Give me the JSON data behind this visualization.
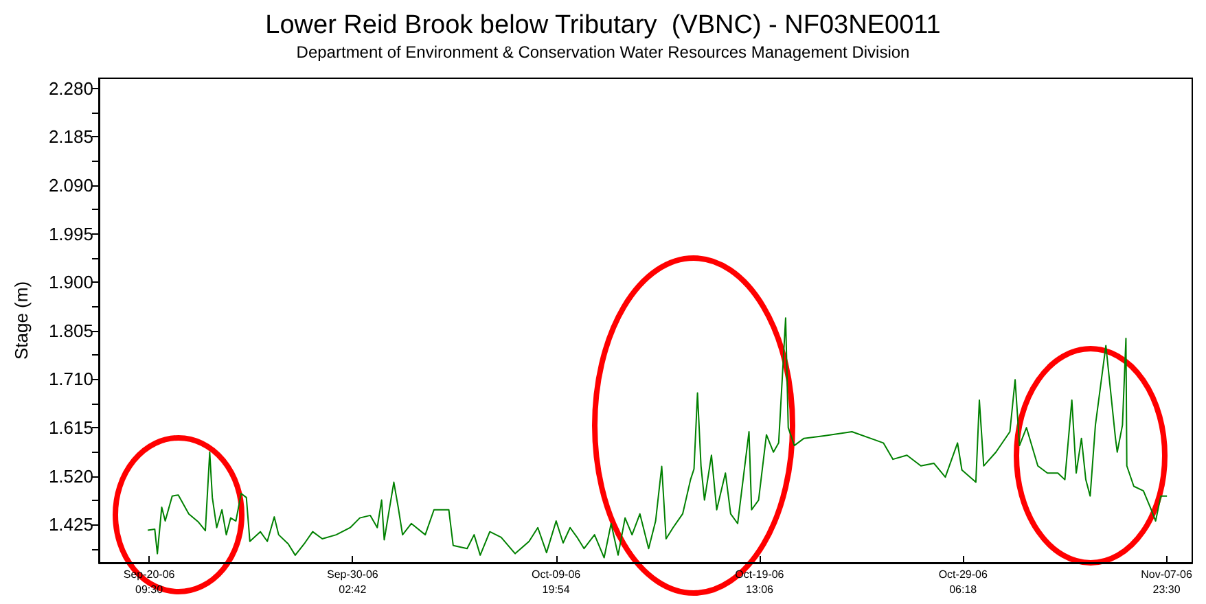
{
  "chart_data": {
    "type": "line",
    "title": "Lower Reid Brook below Tributary  (VBNC) - NF03NE0011",
    "subtitle": "Department of Environment & Conservation Water Resources Management Division",
    "ylabel": "Stage (m)",
    "x": [
      "--09-20T08:00",
      "--09-20T16:00",
      "--09-20T19:00",
      "--09-21T00:00",
      "--09-21T04:00",
      "--09-21T12:00",
      "--09-21T19:00",
      "--09-22T07:00",
      "--09-22T18:00",
      "--09-23T02:00",
      "--09-23T07:00",
      "--09-23T10:00",
      "--09-23T15:00",
      "--09-23T21:00",
      "--09-24T02:00",
      "--09-24T07:00",
      "--09-24T13:00",
      "--09-24T19:00",
      "--09-25T01:00",
      "--09-25T05:00",
      "--09-25T17:00",
      "--09-26T01:00",
      "--09-26T09:00",
      "--09-26T14:00",
      "--09-27T01:00",
      "--09-27T09:00",
      "--09-27T20:00",
      "--09-28T05:00",
      "--09-28T16:00",
      "--09-29T08:00",
      "--09-30T00:00",
      "--09-30T11:00",
      "--09-30T23:00",
      "--10-01T07:00",
      "--10-01T12:00",
      "--10-01T15:00",
      "--10-02T02:00",
      "--10-02T07:00",
      "--10-02T12:00",
      "--10-02T22:00",
      "--10-03T14:00",
      "--10-04T00:00",
      "--10-04T17:00",
      "--10-04T22:00",
      "--10-05T14:00",
      "--10-05T22:00",
      "--10-06T05:00",
      "--10-06T16:00",
      "--10-07T05:00",
      "--10-07T21:00",
      "--10-08T13:00",
      "--10-08T23:00",
      "--10-09T09:00",
      "--10-09T20:00",
      "--10-10T04:00",
      "--10-10T12:00",
      "--10-10T20:00",
      "--10-11T04:00",
      "--10-11T16:00",
      "--10-12T03:00",
      "--10-12T11:00",
      "--10-12T19:00",
      "--10-13T03:00",
      "--10-13T11:00",
      "--10-13T20:00",
      "--10-14T06:00",
      "--10-14T14:00",
      "--10-14T21:00",
      "--10-15T02:00",
      "--10-15T10:00",
      "--10-15T21:00",
      "--10-16T06:00",
      "--10-16T10:00",
      "--10-16T14:00",
      "--10-16T18:00",
      "--10-16T22:00",
      "--10-17T06:00",
      "--10-17T12:00",
      "--10-17T22:00",
      "--10-18T04:00",
      "--10-18T12:00",
      "--10-19T01:00",
      "--10-19T04:00",
      "--10-19T12:00",
      "--10-19T21:00",
      "--10-20T05:00",
      "--10-20T11:00",
      "--10-20T19:00",
      "--10-20T22:00",
      "--10-21T05:00",
      "--10-21T16:00",
      "--10-22T15:00",
      "--10-23T23:00",
      "--10-25T11:00",
      "--10-25T22:00",
      "--10-26T14:00",
      "--10-27T06:00",
      "--10-27T21:00",
      "--10-28T10:00",
      "--10-29T00:00",
      "--10-29T05:00",
      "--10-29T21:00",
      "--10-30T01:00",
      "--10-30T06:00",
      "--10-30T20:00",
      "--10-31T12:00",
      "--10-31T18:00",
      "--10-31T23:00",
      "--11-01T07:00",
      "--11-01T20:00",
      "--11-02T07:00",
      "--11-02T19:00",
      "--11-03T03:00",
      "--11-03T11:00",
      "--11-03T16:00",
      "--11-03T22:00",
      "--11-04T03:00",
      "--11-04T08:00",
      "--11-04T14:00",
      "--11-05T02:00",
      "--11-05T13:00",
      "--11-05T15:00",
      "--11-05T21:00",
      "--11-06T01:00",
      "--11-06T02:00",
      "--11-06T10:00",
      "--11-06T21:00",
      "--11-07T06:00",
      "--11-07T11:00",
      "--11-07T17:00",
      "--11-08T00:00"
    ],
    "series": [
      {
        "color": "#008000",
        "values": [
          1.414,
          1.416,
          1.368,
          1.459,
          1.432,
          1.481,
          1.483,
          1.446,
          1.43,
          1.413,
          1.567,
          1.478,
          1.419,
          1.454,
          1.405,
          1.438,
          1.432,
          1.486,
          1.478,
          1.392,
          1.411,
          1.392,
          1.44,
          1.405,
          1.387,
          1.365,
          1.389,
          1.411,
          1.397,
          1.405,
          1.419,
          1.438,
          1.443,
          1.419,
          1.473,
          1.395,
          1.508,
          1.459,
          1.405,
          1.427,
          1.405,
          1.454,
          1.454,
          1.384,
          1.378,
          1.405,
          1.365,
          1.411,
          1.4,
          1.368,
          1.392,
          1.419,
          1.37,
          1.432,
          1.389,
          1.419,
          1.4,
          1.378,
          1.405,
          1.36,
          1.427,
          1.365,
          1.438,
          1.405,
          1.446,
          1.378,
          1.432,
          1.539,
          1.397,
          1.419,
          1.446,
          1.513,
          1.534,
          1.683,
          1.54,
          1.473,
          1.561,
          1.454,
          1.526,
          1.446,
          1.427,
          1.607,
          1.454,
          1.473,
          1.601,
          1.567,
          1.585,
          1.83,
          1.615,
          1.58,
          1.594,
          1.599,
          1.607,
          1.585,
          1.553,
          1.561,
          1.54,
          1.545,
          1.518,
          1.585,
          1.532,
          1.508,
          1.669,
          1.54,
          1.567,
          1.607,
          1.709,
          1.58,
          1.615,
          1.54,
          1.526,
          1.526,
          1.513,
          1.669,
          1.526,
          1.594,
          1.513,
          1.481,
          1.62,
          1.776,
          1.594,
          1.567,
          1.62,
          1.79,
          1.54,
          1.5,
          1.491,
          1.454,
          1.432,
          1.481,
          1.481
        ]
      }
    ],
    "xlim": [
      "--09-18T00:00",
      "--11-09T05:00"
    ],
    "xticks": [
      {
        "value": "--09-20T09:30",
        "label": "Sep-20-06\n09:30"
      },
      {
        "value": "--09-30T02:42",
        "label": "Sep-30-06\n02:42"
      },
      {
        "value": "--10-09T19:54",
        "label": "Oct-09-06\n19:54"
      },
      {
        "value": "--10-19T13:06",
        "label": "Oct-19-06\n13:06"
      },
      {
        "value": "--10-29T06:18",
        "label": "Oct-29-06\n06:18"
      },
      {
        "value": "--11-07T23:30",
        "label": "Nov-07-06\n23:30"
      }
    ],
    "ylim": [
      1.35,
      2.3
    ],
    "yticks": [
      {
        "value": 1.3775,
        "label": null
      },
      {
        "value": 1.425,
        "label": "1.425"
      },
      {
        "value": 1.4725,
        "label": null
      },
      {
        "value": 1.52,
        "label": "1.520"
      },
      {
        "value": 1.5675,
        "label": null
      },
      {
        "value": 1.615,
        "label": "1.615"
      },
      {
        "value": 1.6625,
        "label": null
      },
      {
        "value": 1.71,
        "label": "1.710"
      },
      {
        "value": 1.7575,
        "label": null
      },
      {
        "value": 1.805,
        "label": "1.805"
      },
      {
        "value": 1.8525,
        "label": null
      },
      {
        "value": 1.9,
        "label": "1.900"
      },
      {
        "value": 1.9475,
        "label": null
      },
      {
        "value": 1.995,
        "label": "1.995"
      },
      {
        "value": 2.0425,
        "label": null
      },
      {
        "value": 2.09,
        "label": "2.090"
      },
      {
        "value": 2.1375,
        "label": null
      },
      {
        "value": 2.185,
        "label": "2.185"
      },
      {
        "value": 2.2325,
        "label": null
      },
      {
        "value": 2.28,
        "label": "2.280"
      }
    ],
    "marker": "none",
    "line_style": "solid",
    "grid": false
  }
}
